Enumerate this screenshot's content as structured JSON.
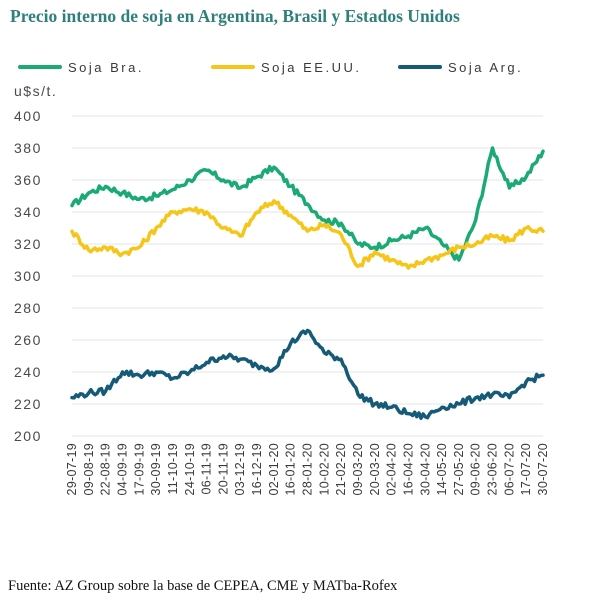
{
  "title": "Precio interno de soja en Argentina, Brasil y Estados Unidos",
  "source": "Fuente: AZ Group sobre la base de CEPEA, CME y MATba-Rofex",
  "chart_data": {
    "type": "line",
    "ylabel": "u$s/t.",
    "ylim": [
      200,
      400
    ],
    "yticks": [
      200,
      220,
      240,
      260,
      280,
      300,
      320,
      340,
      360,
      380,
      400
    ],
    "grid": true,
    "legend_position": "top",
    "x": [
      "29-07-19",
      "09-08-19",
      "22-08-19",
      "04-09-19",
      "17-09-19",
      "30-09-19",
      "11-10-19",
      "24-10-19",
      "06-11-19",
      "20-11-19",
      "03-12-19",
      "16-12-19",
      "02-01-20",
      "16-01-20",
      "28-01-20",
      "10-02-20",
      "21-02-20",
      "09-03-20",
      "20-03-20",
      "02-04-20",
      "16-04-20",
      "30-04-20",
      "14-05-20",
      "27-05-20",
      "09-06-20",
      "23-06-20",
      "06-07-20",
      "17-07-20",
      "30-07-20"
    ],
    "series": [
      {
        "name": "Soja Bra.",
        "color": "#1aaa73",
        "values": [
          344,
          352,
          356,
          352,
          348,
          350,
          354,
          360,
          366,
          360,
          355,
          362,
          368,
          356,
          345,
          335,
          333,
          320,
          318,
          322,
          325,
          330,
          320,
          310,
          335,
          380,
          355,
          362,
          378
        ]
      },
      {
        "name": "Soja EE.UU.",
        "color": "#f5c518",
        "values": [
          328,
          316,
          318,
          314,
          318,
          330,
          340,
          342,
          340,
          330,
          325,
          340,
          347,
          338,
          328,
          332,
          326,
          306,
          315,
          310,
          305,
          310,
          313,
          318,
          320,
          325,
          322,
          330,
          328
        ]
      },
      {
        "name": "Soja Arg.",
        "color": "#155b78",
        "values": [
          224,
          227,
          228,
          240,
          238,
          240,
          236,
          240,
          246,
          250,
          248,
          244,
          242,
          258,
          266,
          252,
          248,
          226,
          220,
          218,
          214,
          212,
          218,
          220,
          224,
          226,
          224,
          234,
          238
        ]
      }
    ]
  }
}
